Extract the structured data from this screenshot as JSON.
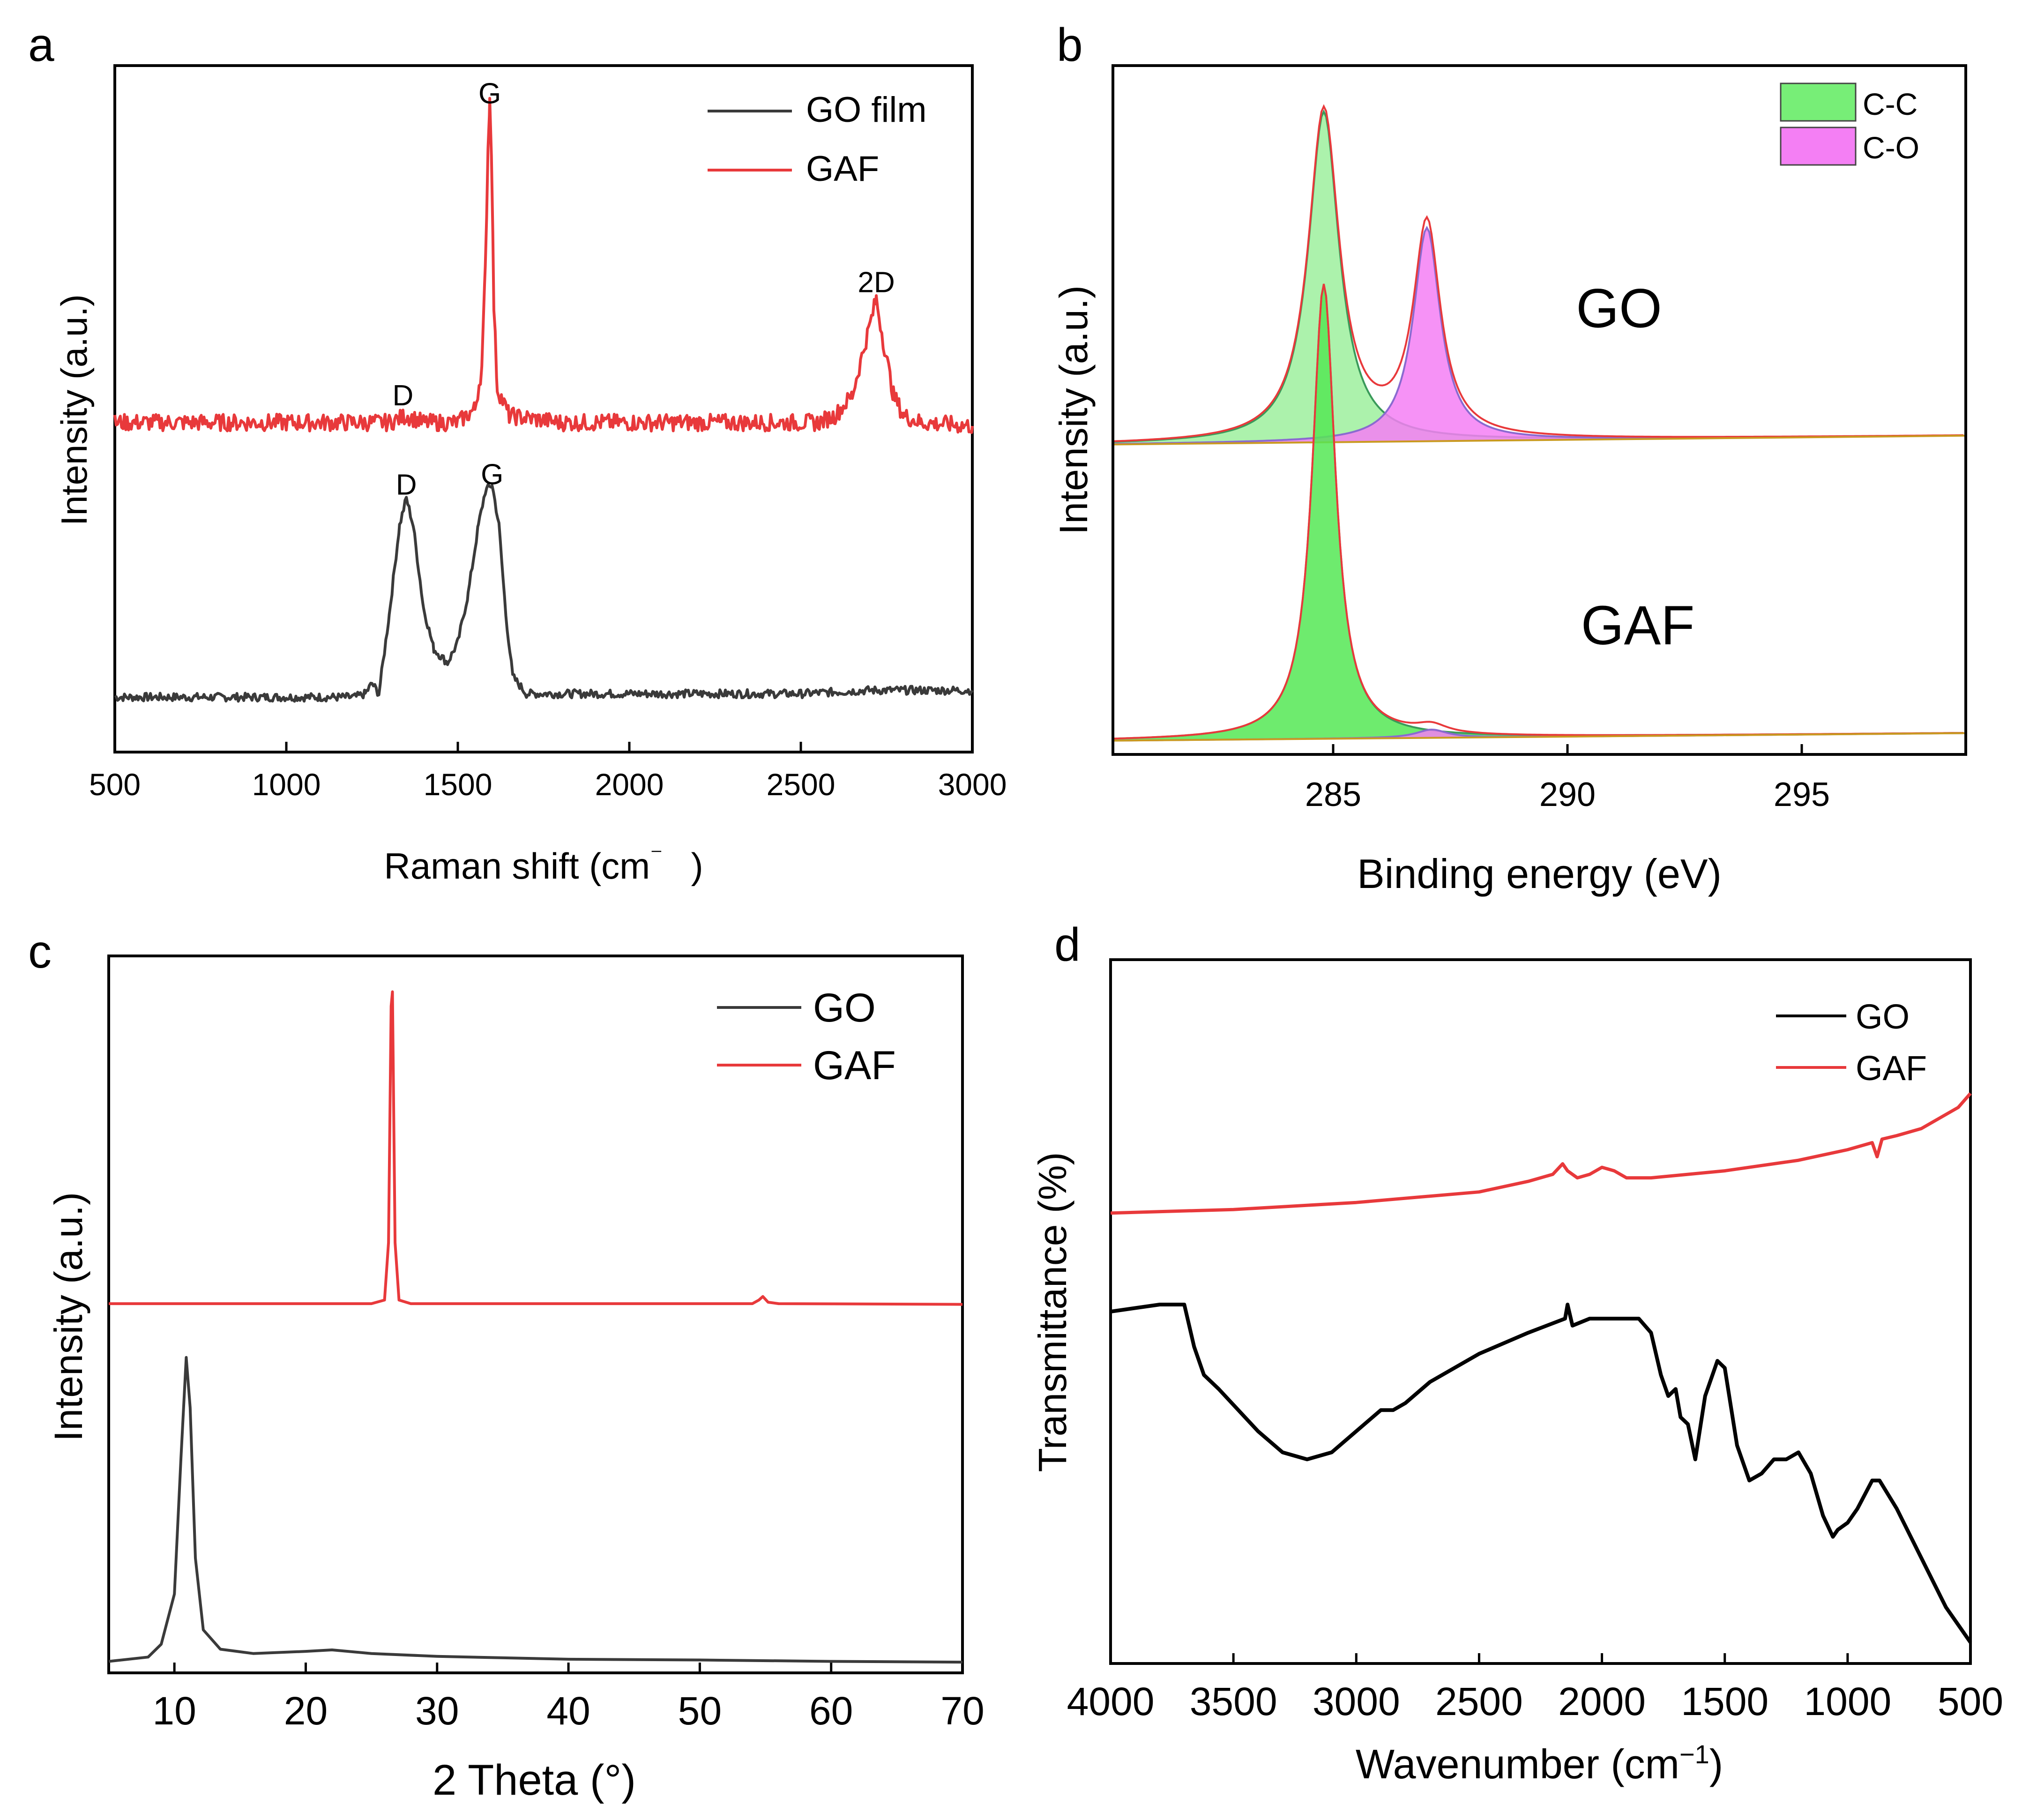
{
  "figure": {
    "panels": [
      {
        "letter": "a",
        "chart_type": "line",
        "title": "",
        "xlabel": "Raman shift (cm",
        "xlabel_sup": "⁻",
        "xlabel_close": ")",
        "ylabel": "Intensity (a.u.)",
        "xlim": [
          500,
          3000
        ],
        "xticks": [
          "500",
          "1000",
          "1500",
          "2000",
          "2500",
          "3000"
        ],
        "ylim": [
          0,
          1
        ],
        "legend": [
          {
            "name": "GO film",
            "color": "#3a3a3a"
          },
          {
            "name": "GAF",
            "color": "#e8393b"
          }
        ],
        "annotations": [
          {
            "text": "G",
            "x": 1593,
            "y": 0.945
          },
          {
            "text": "2D",
            "x": 2720,
            "y": 0.67
          },
          {
            "text": "D",
            "x": 1340,
            "y": 0.505
          },
          {
            "text": "D",
            "x": 1350,
            "y": 0.375
          },
          {
            "text": "G",
            "x": 1600,
            "y": 0.39
          }
        ]
      },
      {
        "letter": "b",
        "chart_type": "area",
        "xlabel": "Binding energy (eV)",
        "ylabel": "Intensity (a.u.)",
        "xlim": [
          280.3,
          298.5
        ],
        "xticks": [
          "285",
          "290",
          "295"
        ],
        "legend": [
          {
            "name": "C-C",
            "color": "#77ee77"
          },
          {
            "name": "C-O",
            "color": "#f47ff4"
          }
        ],
        "labels": [
          {
            "text": "GO",
            "x": 291.1,
            "y": 0.62
          },
          {
            "text": "GAF",
            "x": 291.5,
            "y": 0.16
          }
        ]
      },
      {
        "letter": "c",
        "chart_type": "line",
        "xlabel": "2 Theta (°)",
        "ylabel": "Intensity (a.u.)",
        "xlim": [
          5,
          70
        ],
        "xticks": [
          "10",
          "20",
          "30",
          "40",
          "50",
          "60",
          "70"
        ],
        "legend": [
          {
            "name": "GO",
            "color": "#3a3a3a"
          },
          {
            "name": "GAF",
            "color": "#e8393b"
          }
        ]
      },
      {
        "letter": "d",
        "chart_type": "line",
        "xlabel": "Wavenumber (cm",
        "xlabel_sup": "−1",
        "xlabel_close": ")",
        "ylabel": "Transmittance (%)",
        "xlim": [
          4000,
          500
        ],
        "xticks": [
          "4000",
          "3500",
          "3000",
          "2500",
          "2000",
          "1500",
          "1000",
          "500"
        ],
        "legend": [
          {
            "name": "GO",
            "color": "#000000"
          },
          {
            "name": "GAF",
            "color": "#e8393b"
          }
        ]
      }
    ]
  },
  "chart_data": [
    {
      "type": "line",
      "panel": "a",
      "xlabel": "Raman shift (cm⁻)",
      "ylabel": "Intensity (a.u.)",
      "xlim": [
        500,
        3000
      ],
      "ylim": [
        0,
        1
      ],
      "series": [
        {
          "name": "GO film",
          "x": [
            500,
            700,
            900,
            1100,
            1200,
            1230,
            1250,
            1270,
            1300,
            1330,
            1350,
            1370,
            1400,
            1430,
            1470,
            1500,
            1530,
            1560,
            1580,
            1600,
            1620,
            1640,
            1660,
            1700,
            1800,
            2000,
            2200,
            2500,
            2700,
            3000
          ],
          "y": [
            0.08,
            0.08,
            0.08,
            0.08,
            0.08,
            0.085,
            0.1,
            0.085,
            0.2,
            0.33,
            0.37,
            0.33,
            0.21,
            0.15,
            0.13,
            0.16,
            0.23,
            0.33,
            0.38,
            0.39,
            0.33,
            0.2,
            0.11,
            0.085,
            0.085,
            0.085,
            0.085,
            0.085,
            0.09,
            0.09
          ]
        },
        {
          "name": "GAF",
          "x": [
            500,
            700,
            900,
            1100,
            1300,
            1350,
            1400,
            1500,
            1550,
            1570,
            1580,
            1588,
            1593,
            1598,
            1605,
            1615,
            1650,
            1800,
            2000,
            2200,
            2400,
            2550,
            2600,
            2650,
            2690,
            2720,
            2740,
            2770,
            2800,
            2850,
            3000
          ],
          "y": [
            0.48,
            0.48,
            0.48,
            0.48,
            0.48,
            0.49,
            0.48,
            0.48,
            0.5,
            0.56,
            0.7,
            0.88,
            0.95,
            0.88,
            0.65,
            0.53,
            0.49,
            0.48,
            0.48,
            0.48,
            0.48,
            0.48,
            0.49,
            0.52,
            0.6,
            0.66,
            0.6,
            0.52,
            0.49,
            0.48,
            0.475
          ]
        }
      ]
    },
    {
      "type": "area",
      "panel": "b",
      "xlabel": "Binding energy (eV)",
      "ylabel": "Intensity (a.u.)",
      "xlim": [
        280.3,
        298.5
      ],
      "components": [
        {
          "name": "C-C",
          "sample": "GO",
          "center": 284.8,
          "height": 0.48,
          "width": 0.8,
          "baseline": 0.45
        },
        {
          "name": "C-O",
          "sample": "GO",
          "center": 287.0,
          "height": 0.31,
          "width": 0.7,
          "baseline": 0.45
        },
        {
          "name": "C-C",
          "sample": "GAF",
          "center": 284.8,
          "height": 0.66,
          "width": 0.6,
          "baseline": 0.02
        },
        {
          "name": "C-O",
          "sample": "GAF",
          "center": 287.1,
          "height": 0.012,
          "width": 0.8,
          "baseline": 0.02
        }
      ]
    },
    {
      "type": "line",
      "panel": "c",
      "xlabel": "2 Theta (°)",
      "ylabel": "Intensity (a.u.)",
      "xlim": [
        5,
        70
      ],
      "ylim": [
        0,
        1
      ],
      "series": [
        {
          "name": "GO",
          "x": [
            5,
            8,
            9,
            10,
            10.5,
            10.9,
            11.2,
            11.6,
            12.2,
            13.5,
            16,
            20,
            22,
            25,
            30,
            40,
            50,
            60,
            70
          ],
          "y": [
            0.016,
            0.022,
            0.04,
            0.11,
            0.3,
            0.44,
            0.37,
            0.16,
            0.06,
            0.033,
            0.027,
            0.03,
            0.032,
            0.027,
            0.023,
            0.019,
            0.018,
            0.016,
            0.015
          ]
        },
        {
          "name": "GAF",
          "x": [
            5,
            20,
            25,
            26,
            26.3,
            26.5,
            26.6,
            26.8,
            27.1,
            28,
            35,
            54,
            54.5,
            54.8,
            55.2,
            56,
            70
          ],
          "y": [
            0.515,
            0.515,
            0.515,
            0.52,
            0.6,
            0.93,
            0.95,
            0.6,
            0.52,
            0.515,
            0.515,
            0.515,
            0.52,
            0.525,
            0.517,
            0.515,
            0.514
          ]
        }
      ]
    },
    {
      "type": "line",
      "panel": "d",
      "xlabel": "Wavenumber (cm−1)",
      "ylabel": "Transmittance (%)",
      "xlim": [
        4000,
        500
      ],
      "ylim": [
        0,
        1
      ],
      "series": [
        {
          "name": "GO",
          "x": [
            4000,
            3800,
            3700,
            3660,
            3620,
            3560,
            3400,
            3300,
            3200,
            3100,
            3000,
            2900,
            2850,
            2800,
            2700,
            2500,
            2300,
            2150,
            2140,
            2120,
            2050,
            2000,
            1900,
            1850,
            1800,
            1760,
            1730,
            1700,
            1680,
            1650,
            1620,
            1580,
            1530,
            1500,
            1450,
            1400,
            1350,
            1300,
            1250,
            1200,
            1150,
            1100,
            1060,
            1040,
            1000,
            960,
            900,
            870,
            800,
            700,
            600,
            500
          ],
          "y": [
            0.5,
            0.51,
            0.51,
            0.45,
            0.41,
            0.39,
            0.33,
            0.3,
            0.29,
            0.3,
            0.33,
            0.36,
            0.36,
            0.37,
            0.4,
            0.44,
            0.47,
            0.49,
            0.51,
            0.48,
            0.49,
            0.49,
            0.49,
            0.49,
            0.47,
            0.41,
            0.38,
            0.39,
            0.35,
            0.34,
            0.29,
            0.38,
            0.43,
            0.42,
            0.31,
            0.26,
            0.27,
            0.29,
            0.29,
            0.3,
            0.27,
            0.21,
            0.18,
            0.19,
            0.2,
            0.22,
            0.26,
            0.26,
            0.22,
            0.15,
            0.08,
            0.03
          ]
        },
        {
          "name": "GAF",
          "x": [
            4000,
            3500,
            3000,
            2500,
            2300,
            2200,
            2160,
            2140,
            2100,
            2050,
            2000,
            1950,
            1900,
            1800,
            1500,
            1200,
            1000,
            900,
            880,
            860,
            800,
            700,
            600,
            550,
            500
          ],
          "y": [
            0.64,
            0.645,
            0.655,
            0.67,
            0.685,
            0.695,
            0.71,
            0.7,
            0.69,
            0.695,
            0.705,
            0.7,
            0.69,
            0.69,
            0.7,
            0.715,
            0.73,
            0.74,
            0.72,
            0.745,
            0.75,
            0.76,
            0.78,
            0.79,
            0.81
          ]
        }
      ]
    }
  ]
}
